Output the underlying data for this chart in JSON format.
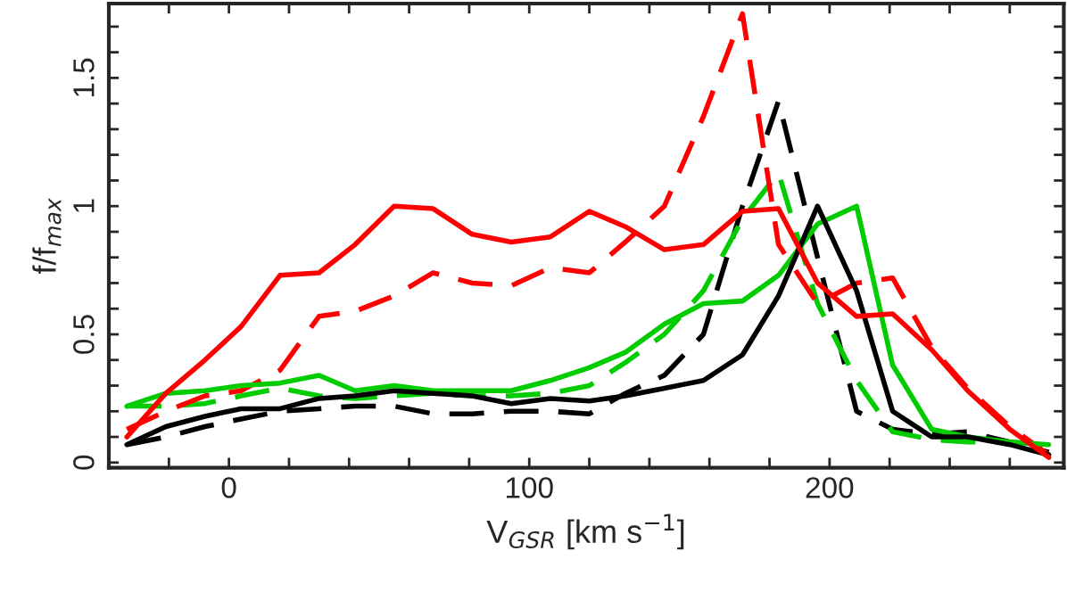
{
  "chart_data": {
    "type": "line",
    "xlabel": "V$_{GSR}$ [km s$^{−1}$]",
    "ylabel": "f/f$_{max}$",
    "x": [
      -34,
      -21,
      -8,
      4,
      17,
      30,
      42,
      55,
      68,
      81,
      94,
      107,
      120,
      132,
      145,
      158,
      171,
      183,
      196,
      209,
      221,
      234,
      246,
      260,
      273
    ],
    "xlim": [
      -40,
      278
    ],
    "ylim": [
      -0.02,
      1.79
    ],
    "xticks": [
      {
        "value": -20,
        "label": null
      },
      0,
      {
        "value": 20,
        "label": null
      },
      {
        "value": 40,
        "label": null
      },
      {
        "value": 60,
        "label": null
      },
      {
        "value": 80,
        "label": null
      },
      100,
      {
        "value": 120,
        "label": null
      },
      {
        "value": 140,
        "label": null
      },
      {
        "value": 160,
        "label": null
      },
      {
        "value": 180,
        "label": null
      },
      200,
      {
        "value": 220,
        "label": null
      },
      {
        "value": 240,
        "label": null
      },
      {
        "value": 260,
        "label": null
      }
    ],
    "yticks": [
      0,
      {
        "value": 0.1,
        "label": null
      },
      {
        "value": 0.2,
        "label": null
      },
      {
        "value": 0.3,
        "label": null
      },
      {
        "value": 0.4,
        "label": null
      },
      0.5,
      {
        "value": 0.6,
        "label": null
      },
      {
        "value": 0.7,
        "label": null
      },
      {
        "value": 0.8,
        "label": null
      },
      {
        "value": 0.9,
        "label": null
      },
      1,
      {
        "value": 1.1,
        "label": null
      },
      {
        "value": 1.2,
        "label": null
      },
      {
        "value": 1.3,
        "label": null
      },
      {
        "value": 1.4,
        "label": null
      },
      1.5,
      {
        "value": 1.6,
        "label": null
      },
      {
        "value": 1.7,
        "label": null
      }
    ],
    "grid": false,
    "legend": false,
    "series": [
      {
        "color": "#000000",
        "line_style": "dashed",
        "values": [
          0.07,
          0.1,
          0.14,
          0.17,
          0.2,
          0.21,
          0.22,
          0.22,
          0.19,
          0.19,
          0.2,
          0.2,
          0.19,
          0.27,
          0.34,
          0.5,
          1.0,
          1.41,
          0.8,
          0.2,
          0.13,
          0.11,
          0.12,
          0.08,
          0.04
        ]
      },
      {
        "color": "#00cc00",
        "line_style": "dashed",
        "values": [
          0.22,
          0.22,
          0.23,
          0.26,
          0.29,
          0.26,
          0.25,
          0.26,
          0.27,
          0.26,
          0.26,
          0.27,
          0.3,
          0.39,
          0.5,
          0.67,
          0.95,
          1.13,
          0.62,
          0.32,
          0.12,
          0.09,
          0.08,
          0.08,
          0.07
        ]
      },
      {
        "color": "#ff0000",
        "line_style": "dashed",
        "values": [
          0.13,
          0.2,
          0.26,
          0.28,
          0.36,
          0.57,
          0.59,
          0.65,
          0.74,
          0.7,
          0.69,
          0.76,
          0.74,
          0.86,
          1.0,
          1.35,
          1.75,
          0.85,
          0.62,
          0.7,
          0.72,
          0.45,
          0.29,
          0.14,
          0.03
        ]
      },
      {
        "color": "#00cc00",
        "line_style": "solid",
        "values": [
          0.22,
          0.27,
          0.28,
          0.3,
          0.31,
          0.34,
          0.28,
          0.3,
          0.28,
          0.28,
          0.28,
          0.32,
          0.37,
          0.43,
          0.54,
          0.62,
          0.63,
          0.73,
          0.93,
          1.0,
          0.38,
          0.13,
          0.1,
          0.08,
          0.07
        ]
      },
      {
        "color": "#000000",
        "line_style": "solid",
        "values": [
          0.07,
          0.14,
          0.18,
          0.21,
          0.21,
          0.25,
          0.26,
          0.28,
          0.27,
          0.26,
          0.23,
          0.25,
          0.24,
          0.26,
          0.29,
          0.32,
          0.42,
          0.65,
          1.0,
          0.67,
          0.2,
          0.1,
          0.1,
          0.07,
          0.03
        ]
      },
      {
        "color": "#ff0000",
        "line_style": "solid",
        "values": [
          0.1,
          0.27,
          0.4,
          0.53,
          0.73,
          0.74,
          0.85,
          1.0,
          0.99,
          0.89,
          0.86,
          0.88,
          0.98,
          0.92,
          0.83,
          0.85,
          0.98,
          0.99,
          0.7,
          0.57,
          0.58,
          0.44,
          0.28,
          0.13,
          0.02
        ]
      }
    ]
  }
}
